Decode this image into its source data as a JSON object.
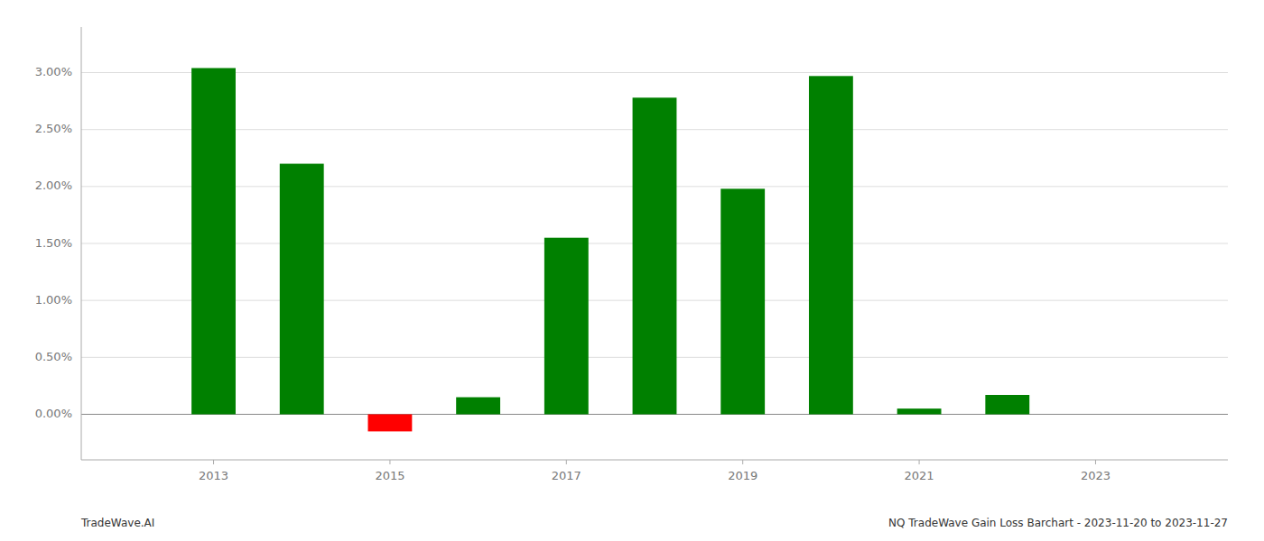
{
  "chart_data": {
    "type": "bar",
    "x": [
      2013,
      2014,
      2015,
      2016,
      2017,
      2018,
      2019,
      2020,
      2021,
      2022
    ],
    "values": [
      0.0304,
      0.022,
      -0.0015,
      0.0015,
      0.0155,
      0.0278,
      0.0198,
      0.0297,
      0.0005,
      0.0017
    ],
    "colors": [
      "#008000",
      "#008000",
      "#ff0000",
      "#008000",
      "#008000",
      "#008000",
      "#008000",
      "#008000",
      "#008000",
      "#008000"
    ],
    "xlim": [
      2011.5,
      2024.5
    ],
    "xticks": [
      2013,
      2015,
      2017,
      2019,
      2021,
      2023
    ],
    "ylim": [
      -0.004,
      0.034
    ],
    "yticks": [
      {
        "value": 0.0,
        "label": "0.00%"
      },
      {
        "value": 0.005,
        "label": "0.50%"
      },
      {
        "value": 0.01,
        "label": "1.00%"
      },
      {
        "value": 0.015,
        "label": "1.50%"
      },
      {
        "value": 0.02,
        "label": "2.00%"
      },
      {
        "value": 0.025,
        "label": "2.50%"
      },
      {
        "value": 0.03,
        "label": "3.00%"
      }
    ],
    "grid": true,
    "annotations": [
      "TradeWave.AI",
      "NQ TradeWave Gain Loss Barchart - 2023-11-20 to 2023-11-27"
    ]
  }
}
